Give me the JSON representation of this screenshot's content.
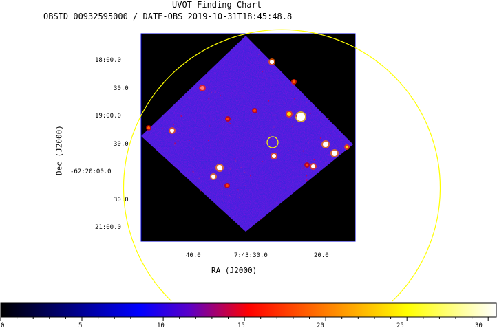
{
  "header": {
    "title": "UVOT Finding Chart",
    "subtitle": "OBSID 00932595000 / DATE-OBS 2019-10-31T18:45:48.8"
  },
  "axes": {
    "xlabel": "RA (J2000)",
    "ylabel": "Dec (J2000)",
    "dec_ticks": [
      "18:00.0",
      "30.0",
      "19:00.0",
      "30.0",
      "-62:20:00.0",
      "30.0",
      "21:00.0"
    ],
    "ra_ticks": [
      "40.0",
      "7:43:30.0",
      "20.0"
    ]
  },
  "colorbar": {
    "ticks": [
      "0",
      "5",
      "10",
      "15",
      "20",
      "25",
      "30"
    ],
    "range": [
      0,
      30.5
    ],
    "colormap": "heat (black-blue-red-yellow-white)"
  },
  "image": {
    "background_color": "#000000",
    "field_color": "#2a2ad8",
    "frame_color": "#0000cc",
    "marker_color": "#ffff00",
    "marker_shape": "circle"
  }
}
